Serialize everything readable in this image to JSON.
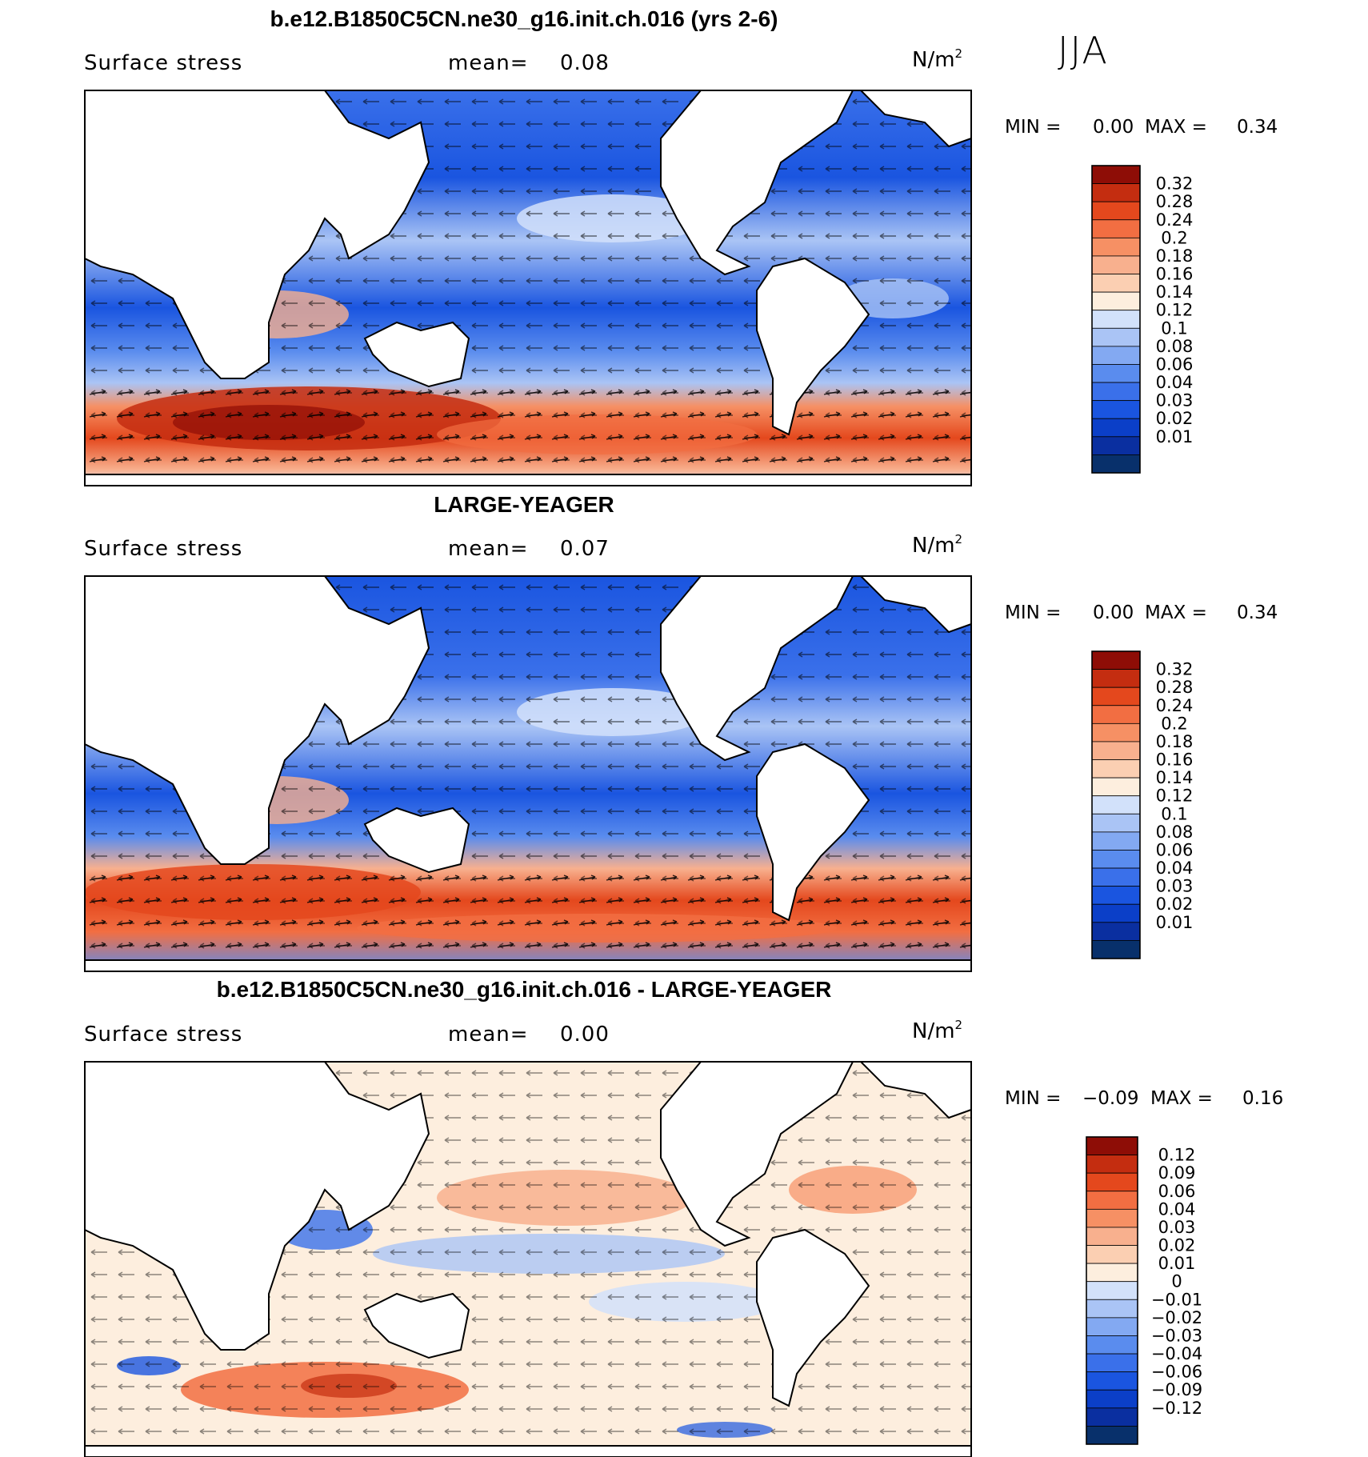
{
  "season": "JJA",
  "colorbar_colors": {
    "abs": [
      "#08306b",
      "#0a2fa0",
      "#0b3fc8",
      "#1a55e0",
      "#3a70ea",
      "#5a8cee",
      "#83a9f2",
      "#aac4f5",
      "#d2e1fa",
      "#fdeede",
      "#fbcfb2",
      "#f8b08e",
      "#f69064",
      "#f26e42",
      "#e4481d",
      "#c42d10",
      "#8e0d06"
    ],
    "diff": [
      "#08306b",
      "#0a2fa0",
      "#0b3fc8",
      "#1a55e0",
      "#3a70ea",
      "#5a8cee",
      "#83a9f2",
      "#aac4f5",
      "#d2e1fa",
      "#fdeede",
      "#fbcfb2",
      "#f8b08e",
      "#f69064",
      "#f26e42",
      "#e4481d",
      "#c42d10",
      "#8e0d06"
    ]
  },
  "panels": [
    {
      "title": "b.e12.B1850C5CN.ne30_g16.init.ch.016 (yrs 2-6)",
      "variable": "Surface stress",
      "mean_label": "mean=",
      "mean_value": "0.08",
      "unit": "N/m",
      "unit_exp": "2",
      "min_label": "MIN =",
      "min_value": "0.00",
      "max_label": "MAX =",
      "max_value": "0.34",
      "colorbar_labels": [
        "0.32",
        "0.28",
        "0.24",
        "0.2",
        "0.18",
        "0.16",
        "0.14",
        "0.12",
        "0.1",
        "0.08",
        "0.06",
        "0.04",
        "0.03",
        "0.02",
        "0.01"
      ]
    },
    {
      "title": "LARGE-YEAGER",
      "variable": "Surface stress",
      "mean_label": "mean=",
      "mean_value": "0.07",
      "unit": "N/m",
      "unit_exp": "2",
      "min_label": "MIN =",
      "min_value": "0.00",
      "max_label": "MAX =",
      "max_value": "0.34",
      "colorbar_labels": [
        "0.32",
        "0.28",
        "0.24",
        "0.2",
        "0.18",
        "0.16",
        "0.14",
        "0.12",
        "0.1",
        "0.08",
        "0.06",
        "0.04",
        "0.03",
        "0.02",
        "0.01"
      ]
    },
    {
      "title": "b.e12.B1850C5CN.ne30_g16.init.ch.016 - LARGE-YEAGER",
      "variable": "Surface stress",
      "mean_label": "mean=",
      "mean_value": "0.00",
      "unit": "N/m",
      "unit_exp": "2",
      "min_label": "MIN =",
      "min_value": "−0.09",
      "max_label": "MAX =",
      "max_value": "0.16",
      "colorbar_labels": [
        "0.12",
        "0.09",
        "0.06",
        "0.04",
        "0.03",
        "0.02",
        "0.01",
        "0",
        "−0.01",
        "−0.02",
        "−0.03",
        "−0.04",
        "−0.06",
        "−0.09",
        "−0.12"
      ]
    }
  ],
  "chart_data": [
    {
      "type": "heatmap",
      "title": "b.e12.B1850C5CN.ne30_g16.init.ch.016 (yrs 2-6)",
      "subtitle": "Surface stress",
      "season": "JJA",
      "units": "N/m2",
      "mean": 0.08,
      "min": 0.0,
      "max": 0.34,
      "levels": [
        0.01,
        0.02,
        0.03,
        0.04,
        0.06,
        0.08,
        0.1,
        0.12,
        0.14,
        0.16,
        0.18,
        0.2,
        0.24,
        0.28,
        0.32
      ],
      "overlay": "wind stress vectors"
    },
    {
      "type": "heatmap",
      "title": "LARGE-YEAGER",
      "subtitle": "Surface stress",
      "season": "JJA",
      "units": "N/m2",
      "mean": 0.07,
      "min": 0.0,
      "max": 0.34,
      "levels": [
        0.01,
        0.02,
        0.03,
        0.04,
        0.06,
        0.08,
        0.1,
        0.12,
        0.14,
        0.16,
        0.18,
        0.2,
        0.24,
        0.28,
        0.32
      ],
      "overlay": "wind stress vectors"
    },
    {
      "type": "heatmap",
      "title": "b.e12.B1850C5CN.ne30_g16.init.ch.016 - LARGE-YEAGER",
      "subtitle": "Surface stress",
      "season": "JJA",
      "units": "N/m2",
      "mean": 0.0,
      "min": -0.09,
      "max": 0.16,
      "levels": [
        -0.12,
        -0.09,
        -0.06,
        -0.04,
        -0.03,
        -0.02,
        -0.01,
        0,
        0.01,
        0.02,
        0.03,
        0.04,
        0.06,
        0.09,
        0.12
      ],
      "overlay": "wind stress difference vectors"
    }
  ]
}
